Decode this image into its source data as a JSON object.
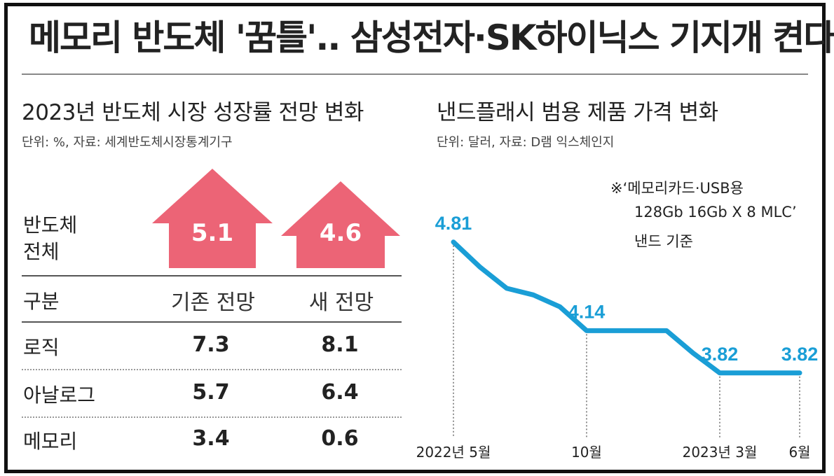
{
  "headline": "메모리 반도체 '꿈틀'.. 삼성전자·SK하이닉스 기지개 켠다",
  "left": {
    "title": "2023년 반도체 시장 성장률 전망 변화",
    "unit": "단위: %, 자료: 세계반도체시장통계기구",
    "total_label_line1": "반도체",
    "total_label_line2": "전체",
    "total_old": "5.1",
    "total_new": "4.6",
    "header": {
      "category": "구분",
      "old": "기존 전망",
      "new": "새 전망"
    },
    "rows": [
      {
        "label": "로직",
        "old": "7.3",
        "new": "8.1"
      },
      {
        "label": "아날로그",
        "old": "5.7",
        "new": "6.4"
      },
      {
        "label": "메모리",
        "old": "3.4",
        "new": "0.6"
      }
    ],
    "arrow_color": "#ec6476"
  },
  "right": {
    "title": "낸드플래시 범용 제품 가격 변화",
    "unit": "단위: 달러, 자료: D램 익스체인지",
    "note_line1": "※‘메모리카드·USB용",
    "note_line2": "128Gb 16Gb X 8 MLC’",
    "note_line3": "낸드 기준",
    "line_color": "#1a9ed6"
  },
  "chart_data": [
    {
      "type": "table",
      "title": "2023년 반도체 시장 성장률 전망 변화",
      "columns": [
        "구분",
        "기존 전망",
        "새 전망"
      ],
      "rows": [
        [
          "반도체 전체",
          5.1,
          4.6
        ],
        [
          "로직",
          7.3,
          8.1
        ],
        [
          "아날로그",
          5.7,
          6.4
        ],
        [
          "메모리",
          3.4,
          0.6
        ]
      ]
    },
    {
      "type": "line",
      "title": "낸드플래시 범용 제품 가격 변화",
      "x_tick_labels": [
        "2022년 5월",
        "10월",
        "2023년 3월",
        "6월"
      ],
      "x": [
        "2022-05",
        "2022-06",
        "2022-07",
        "2022-08",
        "2022-09",
        "2022-10",
        "2022-11",
        "2022-12",
        "2023-01",
        "2023-02",
        "2023-03",
        "2023-04",
        "2023-05",
        "2023-06"
      ],
      "values": [
        4.81,
        4.62,
        4.46,
        4.41,
        4.32,
        4.14,
        4.14,
        4.14,
        4.14,
        3.97,
        3.82,
        3.82,
        3.82,
        3.82
      ],
      "labeled_points": [
        {
          "x": "2022-05",
          "label": "4.81"
        },
        {
          "x": "2022-10",
          "label": "4.14"
        },
        {
          "x": "2023-03",
          "label": "3.82"
        },
        {
          "x": "2023-06",
          "label": "3.82"
        }
      ],
      "ylim": [
        3.3,
        5.1
      ]
    }
  ]
}
